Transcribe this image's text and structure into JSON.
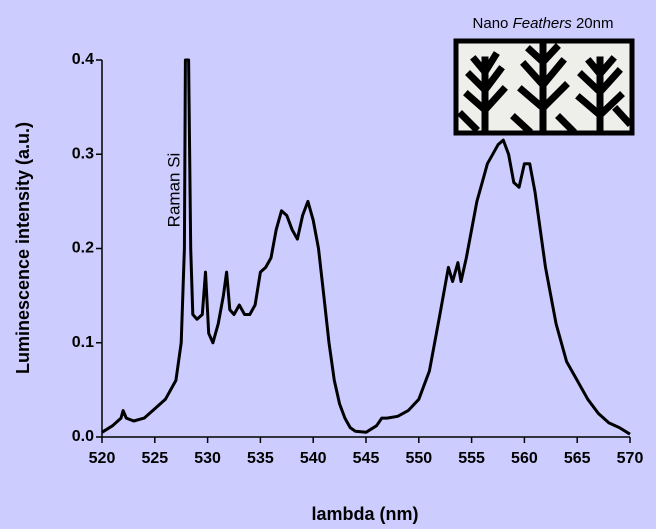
{
  "chart_data": {
    "type": "line",
    "xlabel": "lambda (nm)",
    "ylabel": "Luminescence intensity (a.u.)",
    "annotation": "Raman Si",
    "inset_label": [
      "Nano",
      "Feathers",
      "20nm"
    ],
    "color": "#000000",
    "xlim": [
      520,
      570
    ],
    "ylim": [
      0,
      0.4
    ],
    "xticks": [
      520,
      525,
      530,
      535,
      540,
      545,
      550,
      555,
      560,
      565,
      570
    ],
    "yticks": [
      {
        "value": 0,
        "label": "0.0"
      },
      0.1,
      0.2,
      0.3,
      0.4
    ],
    "x": [
      520,
      521,
      521.8,
      522,
      522.3,
      523,
      524,
      525,
      526,
      527,
      527.5,
      527.8,
      527.9,
      528.2,
      528.4,
      528.6,
      529,
      529.5,
      529.8,
      530.1,
      530.5,
      531,
      531.5,
      531.8,
      532.1,
      532.5,
      533,
      533.5,
      534,
      534.5,
      535,
      535.5,
      536,
      536.5,
      537,
      537.5,
      538,
      538.5,
      539,
      539.5,
      540,
      540.5,
      541,
      541.5,
      542,
      542.5,
      543,
      543.5,
      544,
      545,
      546,
      546.5,
      547,
      548,
      549,
      550,
      551,
      552,
      552.8,
      553.2,
      553.7,
      554,
      554.5,
      555,
      555.5,
      556,
      556.5,
      557,
      557.5,
      558,
      558.5,
      559,
      559.5,
      560,
      560.5,
      561,
      562,
      563,
      564,
      565,
      566,
      567,
      568,
      569,
      570
    ],
    "values": [
      0.005,
      0.012,
      0.02,
      0.028,
      0.02,
      0.017,
      0.02,
      0.03,
      0.04,
      0.06,
      0.1,
      0.2,
      0.4,
      0.4,
      0.2,
      0.13,
      0.125,
      0.13,
      0.175,
      0.11,
      0.1,
      0.12,
      0.15,
      0.175,
      0.135,
      0.13,
      0.14,
      0.13,
      0.13,
      0.14,
      0.175,
      0.18,
      0.19,
      0.22,
      0.24,
      0.235,
      0.22,
      0.21,
      0.235,
      0.25,
      0.23,
      0.2,
      0.15,
      0.1,
      0.06,
      0.035,
      0.02,
      0.01,
      0.006,
      0.005,
      0.012,
      0.02,
      0.02,
      0.022,
      0.028,
      0.04,
      0.07,
      0.13,
      0.18,
      0.165,
      0.185,
      0.165,
      0.19,
      0.22,
      0.25,
      0.27,
      0.29,
      0.3,
      0.31,
      0.315,
      0.3,
      0.27,
      0.265,
      0.29,
      0.29,
      0.26,
      0.18,
      0.12,
      0.08,
      0.06,
      0.04,
      0.025,
      0.015,
      0.01,
      0.003
    ]
  }
}
